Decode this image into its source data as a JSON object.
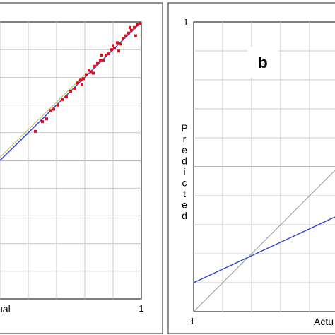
{
  "colors": {
    "grid": "#c8c8c8",
    "zero_line": "#8c8c8c",
    "identity_line": "#9a9a9a",
    "fit_line": "#2a3fd6",
    "fit_line_light": "#b9c36a",
    "points": "#e0101a",
    "frame": "#6b6b6b"
  },
  "chart_data": [
    {
      "type": "scatter",
      "panel": "a",
      "title": "",
      "xlabel": "ual",
      "ylabel": "",
      "x_tick_labels": [
        "1"
      ],
      "y_tick_labels": [],
      "xlim": [
        -1,
        1
      ],
      "ylim": [
        -1,
        1
      ],
      "grid": true,
      "series": [
        {
          "kind": "points",
          "x": [
            0.25,
            0.3,
            0.33,
            0.36,
            0.38,
            0.41,
            0.44,
            0.47,
            0.5,
            0.53,
            0.55,
            0.57,
            0.59,
            0.61,
            0.63,
            0.65,
            0.67,
            0.69,
            0.71,
            0.73,
            0.75,
            0.77,
            0.79,
            0.81,
            0.83,
            0.85,
            0.87,
            0.89,
            0.91,
            0.93,
            0.95,
            0.97,
            0.99,
            0.84,
            0.8,
            0.72,
            0.66,
            0.58,
            0.96,
            0.92
          ],
          "y": [
            0.21,
            0.28,
            0.3,
            0.36,
            0.37,
            0.4,
            0.44,
            0.46,
            0.5,
            0.52,
            0.56,
            0.58,
            0.59,
            0.62,
            0.65,
            0.64,
            0.68,
            0.7,
            0.72,
            0.72,
            0.76,
            0.77,
            0.8,
            0.81,
            0.85,
            0.84,
            0.88,
            0.9,
            0.92,
            0.94,
            0.96,
            0.98,
            0.99,
            0.79,
            0.83,
            0.76,
            0.63,
            0.55,
            0.9,
            0.96
          ]
        },
        {
          "kind": "line",
          "role": "fit",
          "x": [
            -1,
            1
          ],
          "y": [
            -1,
            1
          ]
        },
        {
          "kind": "line",
          "role": "fit-light",
          "x": [
            -1,
            0.6
          ],
          "y": [
            -0.97,
            0.62
          ]
        }
      ]
    },
    {
      "type": "line",
      "panel": "b",
      "panel_letter": "b",
      "title": "",
      "xlabel": "Actu",
      "ylabel": "Predicted",
      "x_tick_labels": [
        "-1"
      ],
      "y_tick_labels": [
        "1"
      ],
      "xlim": [
        -1,
        1
      ],
      "ylim": [
        -1,
        1
      ],
      "grid": true,
      "series": [
        {
          "kind": "line",
          "role": "identity",
          "x": [
            -1,
            1
          ],
          "y": [
            -1,
            1
          ]
        },
        {
          "kind": "line",
          "role": "fit",
          "x": [
            -1,
            1
          ],
          "y": [
            -0.8,
            0.13
          ]
        }
      ]
    }
  ]
}
